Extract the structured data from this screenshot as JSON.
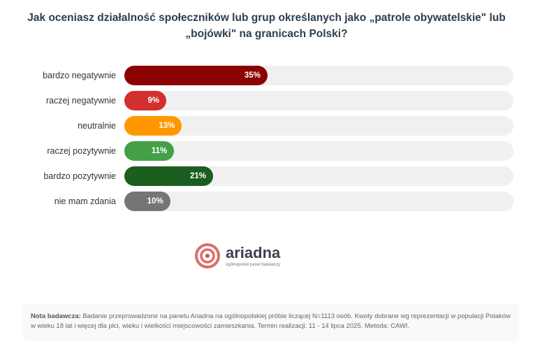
{
  "chart_data": {
    "type": "bar",
    "orientation": "horizontal",
    "title": "Jak oceniasz działalność społeczników lub grup określanych jako „patrole obywatelskie\" lub „bojówki\" na granicach Polski?",
    "categories": [
      "bardzo negatywnie",
      "raczej negatywnie",
      "neutralnie",
      "raczej pozytywnie",
      "bardzo pozytywnie",
      "nie mam zdania"
    ],
    "values": [
      35,
      9,
      13,
      11,
      21,
      10
    ],
    "labels": [
      "35%",
      "9%",
      "13%",
      "11%",
      "21%",
      "10%"
    ],
    "colors": [
      "#8b0000",
      "#d32f2f",
      "#ff9800",
      "#43a047",
      "#1b5e20",
      "#757575"
    ],
    "track_color": "#f0f0f0",
    "xlim": [
      0,
      100
    ],
    "unit": "%"
  },
  "logo": {
    "brand": "ariadna",
    "tagline": "ogólnopolski panel badawczy"
  },
  "note": {
    "label": "Nota badawcza:",
    "text": "Badanie przeprowadzone na panelu Ariadna na ogólnopolskiej próbie liczącej N=1113 osób. Kwoty dobrane wg reprezentacji w populacji Polaków w wieku 18 lat i więcej dla płci, wieku i wielkości miejscowości zamieszkania. Termin realizacji: 11 - 14 lipca 2025. Metoda: CAWI."
  }
}
